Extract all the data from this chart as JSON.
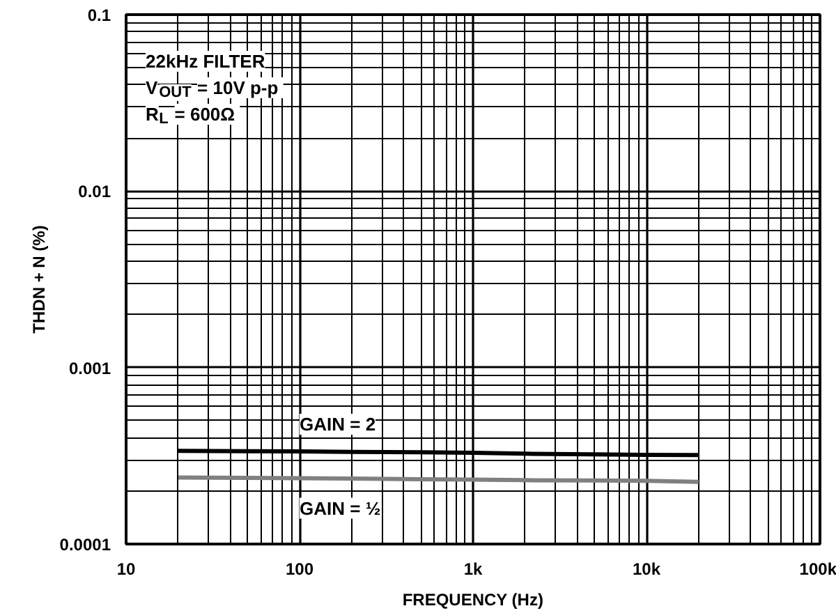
{
  "chart_data": {
    "type": "line",
    "xlabel": "FREQUENCY (Hz)",
    "ylabel": "THDN + N (%)",
    "log": "xy",
    "grid": true,
    "legend": false,
    "line_style": "solid",
    "xlim": [
      10,
      100000
    ],
    "ylim": [
      0.0001,
      0.1
    ],
    "xticks": [
      {
        "value": 10,
        "label": "10"
      },
      {
        "value": 100,
        "label": "100"
      },
      {
        "value": 1000,
        "label": "1k"
      },
      {
        "value": 10000,
        "label": "10k"
      },
      {
        "value": 100000,
        "label": "100k"
      }
    ],
    "yticks": [
      0.0001,
      0.001,
      0.01,
      0.1
    ],
    "x": [
      20,
      50,
      100,
      200,
      500,
      1000,
      2000,
      5000,
      10000,
      20000
    ],
    "series": [
      {
        "name": "GAIN = 2",
        "color": "#000000",
        "values": [
          0.000337,
          0.000336,
          0.000335,
          0.000333,
          0.000331,
          0.000329,
          0.000325,
          0.000322,
          0.00032,
          0.000319
        ]
      },
      {
        "name": "GAIN = ½",
        "color": "#808080",
        "values": [
          0.000238,
          0.000237,
          0.000236,
          0.000235,
          0.000233,
          0.000232,
          0.00023,
          0.000229,
          0.000228,
          0.000225
        ]
      }
    ],
    "annotations": [
      "22kHz FILTER",
      "V$_{OUT}$ = 10V p-p",
      "R$_{L}$ = 600Ω"
    ]
  }
}
